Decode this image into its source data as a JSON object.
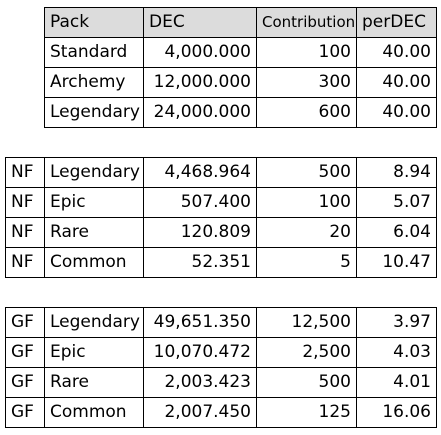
{
  "packs_table": {
    "headers": [
      "Pack",
      "DEC",
      "Contribution",
      "perDEC"
    ],
    "rows": [
      [
        "Standard",
        "4,000.000",
        "100",
        "40.00"
      ],
      [
        "Archemy",
        "12,000.000",
        "300",
        "40.00"
      ],
      [
        "Legendary",
        "24,000.000",
        "600",
        "40.00"
      ]
    ]
  },
  "nf_table": {
    "rows": [
      [
        "NF",
        "Legendary",
        "4,468.964",
        "500",
        "8.94"
      ],
      [
        "NF",
        "Epic",
        "507.400",
        "100",
        "5.07"
      ],
      [
        "NF",
        "Rare",
        "120.809",
        "20",
        "6.04"
      ],
      [
        "NF",
        "Common",
        "52.351",
        "5",
        "10.47"
      ]
    ]
  },
  "gf_table": {
    "rows": [
      [
        "GF",
        "Legendary",
        "49,651.350",
        "12,500",
        "3.97"
      ],
      [
        "GF",
        "Epic",
        "10,070.472",
        "2,500",
        "4.03"
      ],
      [
        "GF",
        "Rare",
        "2,003.423",
        "500",
        "4.01"
      ],
      [
        "GF",
        "Common",
        "2,007.450",
        "125",
        "16.06"
      ]
    ]
  }
}
